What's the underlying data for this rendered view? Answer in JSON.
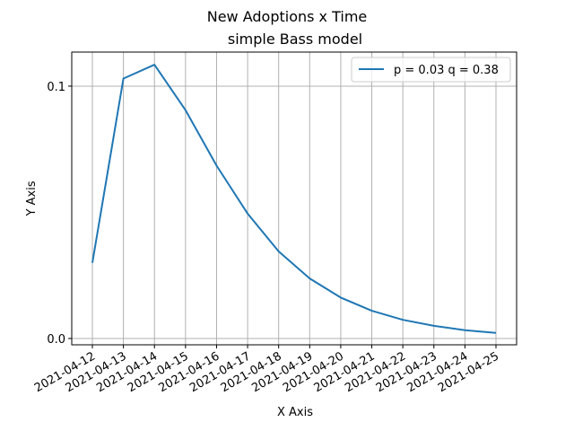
{
  "chart_data": {
    "type": "line",
    "title": "New Adoptions x Time",
    "subtitle": "simple Bass model",
    "xlabel": "X Axis",
    "ylabel": "Y Axis",
    "x": [
      "2021-04-12",
      "2021-04-13",
      "2021-04-14",
      "2021-04-15",
      "2021-04-16",
      "2021-04-17",
      "2021-04-18",
      "2021-04-19",
      "2021-04-20",
      "2021-04-21",
      "2021-04-22",
      "2021-04-23",
      "2021-04-24",
      "2021-04-25"
    ],
    "series": [
      {
        "name": "p = 0.03 q = 0.38",
        "color": "#1f77b4",
        "values": [
          0.03,
          0.103,
          0.1085,
          0.0905,
          0.0685,
          0.0495,
          0.0345,
          0.0238,
          0.0162,
          0.011,
          0.0074,
          0.005,
          0.0033,
          0.0022
        ]
      }
    ],
    "yticks": [
      0.0,
      0.1
    ],
    "ytick_labels": [
      "0.0",
      "0.1"
    ],
    "ylim": [
      -0.0025,
      0.1135
    ],
    "grid": "x",
    "legend_position": "upper right"
  }
}
